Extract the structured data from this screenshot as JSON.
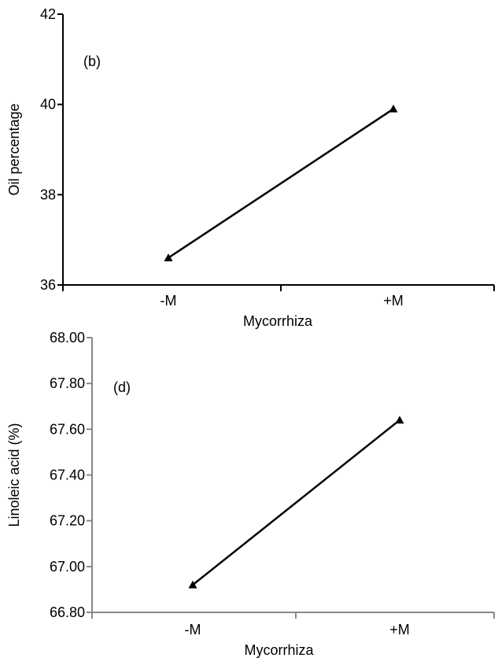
{
  "chart_data": [
    {
      "type": "line",
      "panel_label": "(b)",
      "categories": [
        "-M",
        "+M"
      ],
      "series": [
        {
          "values": [
            36.6,
            39.9
          ],
          "marker": "triangle"
        }
      ],
      "xlabel": "Mycorrhiza",
      "ylabel": "Oil percentage",
      "ylim": [
        36,
        42
      ],
      "yticks": [
        36,
        38,
        40,
        42
      ],
      "ytick_labels": [
        "36",
        "38",
        "40",
        "42"
      ],
      "grid": false
    },
    {
      "type": "line",
      "panel_label": "(d)",
      "categories": [
        "-M",
        "+M"
      ],
      "series": [
        {
          "values": [
            66.92,
            67.64
          ],
          "marker": "triangle"
        }
      ],
      "xlabel": "Mycorrhiza",
      "ylabel": "Linoleic acid (%)",
      "ylim": [
        66.8,
        68.0
      ],
      "yticks": [
        66.8,
        67.0,
        67.2,
        67.4,
        67.6,
        67.8,
        68.0
      ],
      "ytick_labels": [
        "66.80",
        "67.00",
        "67.20",
        "67.40",
        "67.60",
        "67.80",
        "68.00"
      ],
      "grid": false
    }
  ],
  "colors": {
    "line": "#000000",
    "axis_top": "#000000",
    "axis_bottom": "#888888"
  }
}
